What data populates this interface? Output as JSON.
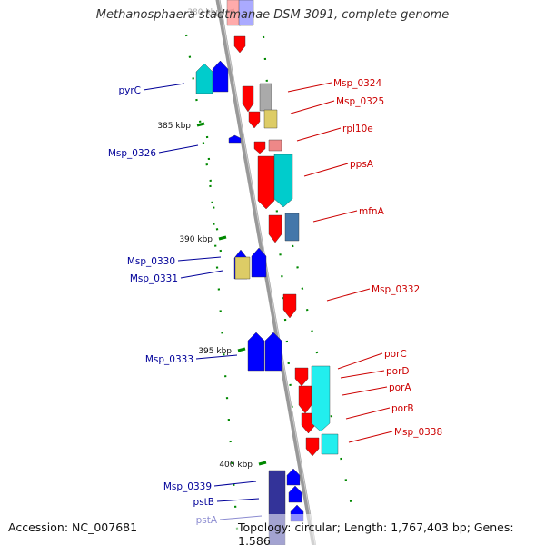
{
  "title": "Methanosphaera stadtmanae DSM 3091, complete genome",
  "accession": "Accession: NC_007681",
  "summary": "Topology: circular; Length: 1,767,403 bp; Genes: 1,586",
  "ticks": [
    {
      "label": "380 kbp"
    },
    {
      "label": "385 kbp"
    },
    {
      "label": "390 kbp"
    },
    {
      "label": "395 kbp"
    },
    {
      "label": "400 kbp"
    }
  ],
  "genes_forward": [
    {
      "name": "Msp_0324",
      "color": "#ff0000"
    },
    {
      "name": "Msp_0325",
      "color": "#ff0000"
    },
    {
      "name": "rpl10e",
      "color": "#ff0000"
    },
    {
      "name": "ppsA",
      "color": "#ff0000"
    },
    {
      "name": "mfnA",
      "color": "#ff0000"
    },
    {
      "name": "Msp_0332",
      "color": "#ff0000"
    },
    {
      "name": "porC",
      "color": "#ff0000"
    },
    {
      "name": "porD",
      "color": "#ff0000"
    },
    {
      "name": "porA",
      "color": "#ff0000"
    },
    {
      "name": "porB",
      "color": "#ff0000"
    },
    {
      "name": "Msp_0338",
      "color": "#ff0000"
    }
  ],
  "genes_reverse": [
    {
      "name": "pyrC",
      "color": "#0000ff"
    },
    {
      "name": "Msp_0326",
      "color": "#0000ff"
    },
    {
      "name": "Msp_0330",
      "color": "#0000ff"
    },
    {
      "name": "Msp_0331",
      "color": "#0000ff"
    },
    {
      "name": "Msp_0333",
      "color": "#0000ff"
    },
    {
      "name": "Msp_0339",
      "color": "#0000ff"
    },
    {
      "name": "pstB",
      "color": "#0000ff"
    },
    {
      "name": "pstA",
      "color": "#0000ff"
    }
  ],
  "colors": {
    "backbone": "#999999",
    "forward_label": "#cc0000",
    "reverse_label": "#000099",
    "tick": "#008800",
    "cog_cyan": "#00cccc",
    "cog_yellow": "#ddcc66",
    "cog_steel": "#4477aa",
    "cog_grey": "#aaaaaa"
  }
}
